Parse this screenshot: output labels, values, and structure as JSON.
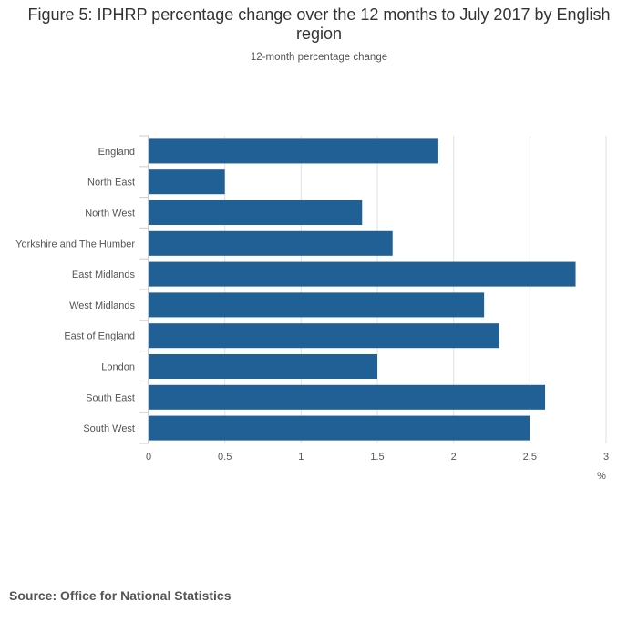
{
  "chart_data": {
    "type": "bar",
    "orientation": "horizontal",
    "title": "Figure 5: IPHRP percentage change over the 12 months to July 2017 by English region",
    "subtitle": "12-month percentage change",
    "categories": [
      "England",
      "North East",
      "North West",
      "Yorkshire and The Humber",
      "East Midlands",
      "West Midlands",
      "East of England",
      "London",
      "South East",
      "South West"
    ],
    "series": [
      {
        "name": "12-month percentage change",
        "values": [
          1.9,
          0.5,
          1.4,
          1.6,
          2.8,
          2.2,
          2.3,
          1.5,
          2.6,
          2.5
        ]
      }
    ],
    "xlabel": "%",
    "ylabel": "",
    "xlim": [
      0,
      3
    ],
    "xticks": [
      0,
      0.5,
      1,
      1.5,
      2,
      2.5,
      3
    ],
    "xtick_labels": [
      "0",
      "0.5",
      "1",
      "1.5",
      "2",
      "2.5",
      "3"
    ],
    "grid": true,
    "bar_color": "#206095",
    "grid_color": "#e2e2e2",
    "axis_color": "#cccccc"
  },
  "source": "Source: Office for National Statistics"
}
